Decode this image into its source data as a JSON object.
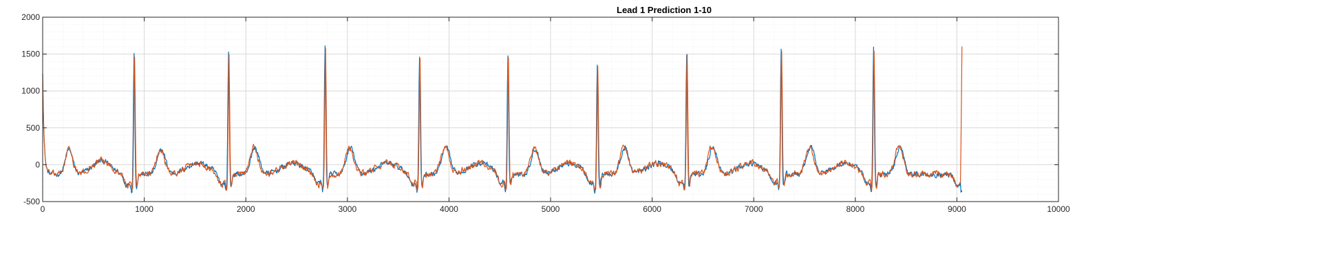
{
  "chart_data": {
    "type": "line",
    "title": "Lead 1 Prediction 1-10",
    "xlabel": "",
    "ylabel": "",
    "xlim": [
      0,
      10000
    ],
    "ylim": [
      -500,
      2000
    ],
    "xticks": [
      0,
      1000,
      2000,
      3000,
      4000,
      5000,
      6000,
      7000,
      8000,
      9000,
      10000
    ],
    "yticks": [
      -500,
      0,
      500,
      1000,
      1500,
      2000
    ],
    "xtick_labels": [
      "0",
      "1000",
      "2000",
      "3000",
      "4000",
      "5000",
      "6000",
      "7000",
      "8000",
      "9000",
      "10000"
    ],
    "ytick_labels": [
      "-500",
      "0",
      "500",
      "1000",
      "1500",
      "2000"
    ],
    "grid": true,
    "minor_grid": true,
    "legend": "none",
    "beats": [
      {
        "r_x": 900,
        "r_peak": 1520,
        "t_x": 1170,
        "t_peak": 240
      },
      {
        "r_x": 1830,
        "r_peak": 1530,
        "t_x": 2090,
        "t_peak": 270
      },
      {
        "r_x": 2780,
        "r_peak": 1620,
        "t_x": 3030,
        "t_peak": 270
      },
      {
        "r_x": 3710,
        "r_peak": 1480,
        "t_x": 3970,
        "t_peak": 270
      },
      {
        "r_x": 4580,
        "r_peak": 1470,
        "t_x": 4850,
        "t_peak": 250
      },
      {
        "r_x": 5460,
        "r_peak": 1380,
        "t_x": 5730,
        "t_peak": 260
      },
      {
        "r_x": 6340,
        "r_peak": 1490,
        "t_x": 6600,
        "t_peak": 290
      },
      {
        "r_x": 7270,
        "r_peak": 1600,
        "t_x": 7560,
        "t_peak": 280
      },
      {
        "r_x": 8180,
        "r_peak": 1600,
        "t_x": 8440,
        "t_peak": 280
      }
    ],
    "series": [
      {
        "color": "#0072BD",
        "start": [
          0,
          1250
        ],
        "first_t": {
          "x": 260,
          "y": 260
        },
        "end": [
          9050,
          -350
        ]
      },
      {
        "color": "#D95319",
        "start": [
          0,
          1250
        ],
        "first_t": {
          "x": 260,
          "y": 260
        },
        "end": [
          9050,
          1570
        ]
      }
    ],
    "colors": {
      "background": "#ffffff",
      "axes_box": "#262626",
      "grid": "#d9d9d9",
      "minor_grid": "#eeeeee"
    }
  }
}
